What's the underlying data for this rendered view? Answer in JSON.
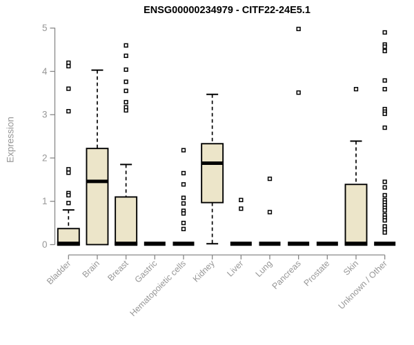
{
  "header": {
    "title": "ENSG00000234979 - CITF22-24E5.1"
  },
  "chart_data": {
    "type": "boxplot",
    "title": "ENSG00000234979 - CITF22-24E5.1",
    "xlabel": "",
    "ylabel": "Expression",
    "ylim": [
      0,
      5
    ],
    "yticks": [
      0,
      1,
      2,
      3,
      4,
      5
    ],
    "grid": false,
    "legend": false,
    "colors": {
      "box_fill": "#ECE5C9",
      "box_border": "#000000",
      "axis": "#878787",
      "tick_label": "#979797",
      "title": "#000000"
    },
    "categories": [
      "Bladder",
      "Brain",
      "Breast",
      "Gastric",
      "Hematopoietic cells",
      "Kidney",
      "Liver",
      "Lung",
      "Pancreas",
      "Prostate",
      "Skin",
      "Unknown / Other"
    ],
    "series": [
      {
        "name": "Bladder",
        "q1": 0,
        "median": 0.02,
        "q3": 0.37,
        "whisker_low": 0,
        "whisker_high": 0.8,
        "outliers": [
          4.2,
          4.12,
          3.6,
          3.08,
          1.74,
          1.66,
          1.19,
          1.14,
          0.96
        ]
      },
      {
        "name": "Brain",
        "q1": 0,
        "median": 1.46,
        "q3": 2.22,
        "whisker_low": 0,
        "whisker_high": 4.03,
        "outliers": []
      },
      {
        "name": "Breast",
        "q1": 0,
        "median": 0.02,
        "q3": 1.1,
        "whisker_low": 0,
        "whisker_high": 1.85,
        "outliers": [
          4.6,
          4.36,
          4.04,
          3.76,
          3.55,
          3.29,
          3.17,
          3.1
        ]
      },
      {
        "name": "Gastric",
        "q1": 0,
        "median": 0.02,
        "q3": 0.02,
        "whisker_low": 0,
        "whisker_high": 0.02,
        "outliers": []
      },
      {
        "name": "Hematopoietic cells",
        "q1": 0,
        "median": 0.02,
        "q3": 0.02,
        "whisker_low": 0,
        "whisker_high": 0.02,
        "outliers": [
          2.18,
          1.65,
          1.39,
          1.08,
          0.95,
          0.78,
          0.72,
          0.5,
          0.36
        ]
      },
      {
        "name": "Kidney",
        "q1": 0.97,
        "median": 1.88,
        "q3": 2.33,
        "whisker_low": 0.02,
        "whisker_high": 3.47,
        "outliers": []
      },
      {
        "name": "Liver",
        "q1": 0,
        "median": 0.02,
        "q3": 0.02,
        "whisker_low": 0,
        "whisker_high": 0.02,
        "outliers": [
          1.03,
          0.83
        ]
      },
      {
        "name": "Lung",
        "q1": 0,
        "median": 0.02,
        "q3": 0.02,
        "whisker_low": 0,
        "whisker_high": 0.02,
        "outliers": [
          1.52,
          0.75
        ]
      },
      {
        "name": "Pancreas",
        "q1": 0,
        "median": 0.02,
        "q3": 0.02,
        "whisker_low": 0,
        "whisker_high": 0.02,
        "outliers": [
          4.98,
          3.51
        ]
      },
      {
        "name": "Prostate",
        "q1": 0,
        "median": 0.02,
        "q3": 0.02,
        "whisker_low": 0,
        "whisker_high": 0.02,
        "outliers": []
      },
      {
        "name": "Skin",
        "q1": 0,
        "median": 0.02,
        "q3": 1.39,
        "whisker_low": 0,
        "whisker_high": 2.39,
        "outliers": [
          3.59
        ]
      },
      {
        "name": "Unknown / Other",
        "q1": 0,
        "median": 0.02,
        "q3": 0.02,
        "whisker_low": 0,
        "whisker_high": 0.02,
        "outliers": [
          4.9,
          4.62,
          4.57,
          4.47,
          3.79,
          3.59,
          3.13,
          3.07,
          3.02,
          2.7,
          1.45,
          1.32,
          1.14,
          1.03,
          0.97,
          0.91,
          0.85,
          0.79,
          0.68,
          0.62,
          0.56,
          0.42,
          0.35,
          0.28
        ]
      }
    ]
  }
}
